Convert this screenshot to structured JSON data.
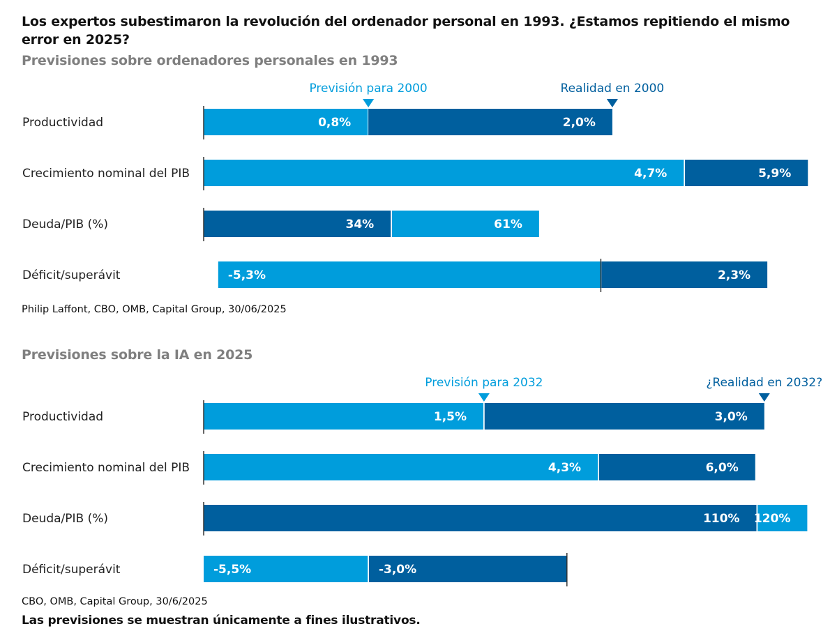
{
  "title": "Los expertos subestimaron la revolución del ordenador personal en 1993. ¿Estamos repitiendo el mismo error en 2025?",
  "disclaimer": "Las previsiones se muestran únicamente a fines ilustrativos.",
  "colors": {
    "light": "#009ddc",
    "dark": "#005f9e",
    "axis": "#333333",
    "subtitle": "#7f7f7f"
  },
  "chart_data": [
    {
      "type": "bar",
      "orientation": "horizontal-stacked",
      "title": "Previsiones sobre ordenadores personales en 1993",
      "source": "Philip Laffont, CBO, OMB, Capital Group, 30/06/2025",
      "markers": [
        {
          "label": "Previsión para 2000",
          "color": "light",
          "row": 0,
          "at": 0.272
        },
        {
          "label": "Realidad en 2000",
          "color": "dark",
          "row": 0,
          "at": 0.675
        }
      ],
      "categories": [
        "Productividad",
        "Crecimiento nominal del PIB",
        "Deuda/PIB (%)",
        "Déficit/superávit"
      ],
      "rows": [
        {
          "category": "Productividad",
          "axis_at": 0.0,
          "segments": [
            {
              "label": "0,8%",
              "value": 0.8,
              "series": "Previsión para 2000",
              "color": "light",
              "from": 0.0,
              "to": 0.271,
              "align": "end"
            },
            {
              "label": "2,0%",
              "value": 2.0,
              "series": "Realidad en 2000",
              "color": "dark",
              "from": 0.272,
              "to": 0.675,
              "align": "end"
            }
          ]
        },
        {
          "category": "Crecimiento nominal del PIB",
          "axis_at": 0.0,
          "segments": [
            {
              "label": "4,7%",
              "value": 4.7,
              "series": "Previsión para 2000",
              "color": "light",
              "from": 0.0,
              "to": 0.793,
              "align": "end"
            },
            {
              "label": "5,9%",
              "value": 5.9,
              "series": "Realidad en 2000",
              "color": "dark",
              "from": 0.795,
              "to": 0.998,
              "align": "end"
            }
          ]
        },
        {
          "category": "Deuda/PIB (%)",
          "axis_at": 0.0,
          "segments": [
            {
              "label": "34%",
              "value": 34,
              "series": "Realidad en 2000",
              "color": "dark",
              "from": 0.0,
              "to": 0.309,
              "align": "end"
            },
            {
              "label": "61%",
              "value": 61,
              "series": "Previsión para 2000",
              "color": "light",
              "from": 0.311,
              "to": 0.554,
              "align": "end"
            }
          ]
        },
        {
          "category": "Déficit/superávit",
          "axis_at": 0.656,
          "segments": [
            {
              "label": "-5,3%",
              "value": -5.3,
              "series": "Previsión para 2000",
              "color": "light",
              "from": 0.024,
              "to": 0.656,
              "align": "start"
            },
            {
              "label": "2,3%",
              "value": 2.3,
              "series": "Realidad en 2000",
              "color": "dark",
              "from": 0.657,
              "to": 0.931,
              "align": "end"
            }
          ]
        }
      ]
    },
    {
      "type": "bar",
      "orientation": "horizontal-stacked",
      "title": "Previsiones sobre la IA en 2025",
      "source": "CBO, OMB, Capital Group, 30/6/2025",
      "markers": [
        {
          "label": "Previsión para 2032",
          "color": "light",
          "row": 0,
          "at": 0.463
        },
        {
          "label": "¿Realidad en 2032?",
          "color": "dark",
          "row": 0,
          "at": 0.926
        }
      ],
      "categories": [
        "Productividad",
        "Crecimiento nominal del PIB",
        "Deuda/PIB (%)",
        "Déficit/superávit"
      ],
      "rows": [
        {
          "category": "Productividad",
          "axis_at": 0.0,
          "segments": [
            {
              "label": "1,5%",
              "value": 1.5,
              "series": "Previsión para 2032",
              "color": "light",
              "from": 0.0,
              "to": 0.462,
              "align": "end"
            },
            {
              "label": "3,0%",
              "value": 3.0,
              "series": "¿Realidad en 2032?",
              "color": "dark",
              "from": 0.464,
              "to": 0.926,
              "align": "end"
            }
          ]
        },
        {
          "category": "Crecimiento nominal del PIB",
          "axis_at": 0.0,
          "segments": [
            {
              "label": "4,3%",
              "value": 4.3,
              "series": "Previsión para 2032",
              "color": "light",
              "from": 0.0,
              "to": 0.651,
              "align": "end"
            },
            {
              "label": "6,0%",
              "value": 6.0,
              "series": "¿Realidad en 2032?",
              "color": "dark",
              "from": 0.653,
              "to": 0.911,
              "align": "end"
            }
          ]
        },
        {
          "category": "Deuda/PIB (%)",
          "axis_at": 0.0,
          "segments": [
            {
              "label": "110%",
              "value": 110,
              "series": "¿Realidad en 2032?",
              "color": "dark",
              "from": 0.0,
              "to": 0.913,
              "align": "end"
            },
            {
              "label": "120%",
              "value": 120,
              "series": "Previsión para 2032",
              "color": "light",
              "from": 0.915,
              "to": 0.997,
              "align": "end"
            }
          ]
        },
        {
          "category": "Déficit/superávit",
          "axis_at": 0.6,
          "segments": [
            {
              "label": "-5,5%",
              "value": -5.5,
              "series": "Previsión para 2032",
              "color": "light",
              "from": 0.0,
              "to": 0.271,
              "align": "start"
            },
            {
              "label": "-3,0%",
              "value": -3.0,
              "series": "¿Realidad en 2032?",
              "color": "dark",
              "from": 0.273,
              "to": 0.6,
              "align": "start"
            }
          ]
        }
      ]
    }
  ]
}
